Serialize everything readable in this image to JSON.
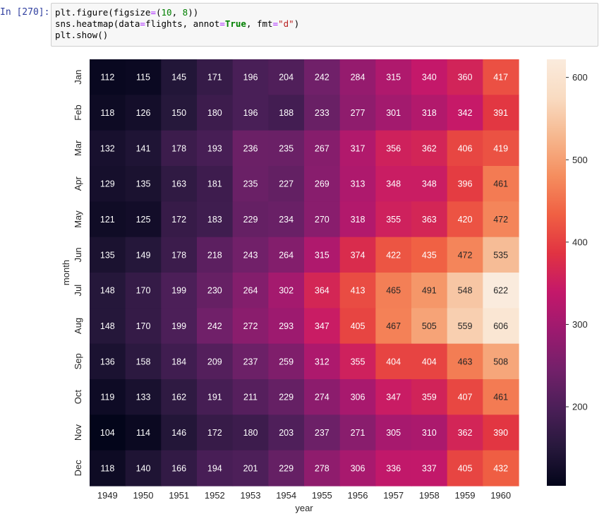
{
  "cell": {
    "prompt": "In [270]:",
    "code_lines": [
      [
        {
          "t": "plt.figure(figsize",
          "c": ""
        },
        {
          "t": "=",
          "c": "op"
        },
        {
          "t": "(",
          "c": ""
        },
        {
          "t": "10",
          "c": "num"
        },
        {
          "t": ", ",
          "c": ""
        },
        {
          "t": "8",
          "c": "num"
        },
        {
          "t": "))",
          "c": ""
        }
      ],
      [
        {
          "t": "sns.heatmap(data",
          "c": ""
        },
        {
          "t": "=",
          "c": "op"
        },
        {
          "t": "flights, annot",
          "c": ""
        },
        {
          "t": "=",
          "c": "op"
        },
        {
          "t": "True",
          "c": "kw"
        },
        {
          "t": ", fmt",
          "c": ""
        },
        {
          "t": "=",
          "c": "op"
        },
        {
          "t": "\"d\"",
          "c": "str"
        },
        {
          "t": ")",
          "c": ""
        }
      ],
      [
        {
          "t": "plt.show()",
          "c": ""
        }
      ]
    ]
  },
  "chart_data": {
    "type": "heatmap",
    "title": "",
    "xlabel": "year",
    "ylabel": "month",
    "x": [
      "1949",
      "1950",
      "1951",
      "1952",
      "1953",
      "1954",
      "1955",
      "1956",
      "1957",
      "1958",
      "1959",
      "1960"
    ],
    "y": [
      "Jan",
      "Feb",
      "Mar",
      "Apr",
      "May",
      "Jun",
      "Jul",
      "Aug",
      "Sep",
      "Oct",
      "Nov",
      "Dec"
    ],
    "values": [
      [
        112,
        115,
        145,
        171,
        196,
        204,
        242,
        284,
        315,
        340,
        360,
        417
      ],
      [
        118,
        126,
        150,
        180,
        196,
        188,
        233,
        277,
        301,
        318,
        342,
        391
      ],
      [
        132,
        141,
        178,
        193,
        236,
        235,
        267,
        317,
        356,
        362,
        406,
        419
      ],
      [
        129,
        135,
        163,
        181,
        235,
        227,
        269,
        313,
        348,
        348,
        396,
        461
      ],
      [
        121,
        125,
        172,
        183,
        229,
        234,
        270,
        318,
        355,
        363,
        420,
        472
      ],
      [
        135,
        149,
        178,
        218,
        243,
        264,
        315,
        374,
        422,
        435,
        472,
        535
      ],
      [
        148,
        170,
        199,
        230,
        264,
        302,
        364,
        413,
        465,
        491,
        548,
        622
      ],
      [
        148,
        170,
        199,
        242,
        272,
        293,
        347,
        405,
        467,
        505,
        559,
        606
      ],
      [
        136,
        158,
        184,
        209,
        237,
        259,
        312,
        355,
        404,
        404,
        463,
        508
      ],
      [
        119,
        133,
        162,
        191,
        211,
        229,
        274,
        306,
        347,
        359,
        407,
        461
      ],
      [
        104,
        114,
        146,
        172,
        180,
        203,
        237,
        271,
        305,
        310,
        362,
        390
      ],
      [
        118,
        140,
        166,
        194,
        201,
        229,
        278,
        306,
        336,
        337,
        405,
        432
      ]
    ],
    "annot": true,
    "colormap": "rocket",
    "colorbar": {
      "ticks": [
        200,
        300,
        400,
        500,
        600
      ],
      "vmin": 104,
      "vmax": 622
    },
    "colormap_stops": [
      "#03051a",
      "#27183c",
      "#4b1f58",
      "#73206a",
      "#9c1a6f",
      "#c4186a",
      "#e13342",
      "#f06043",
      "#f58e5f",
      "#f6b78e",
      "#f9dbc1",
      "#faebdd"
    ]
  }
}
